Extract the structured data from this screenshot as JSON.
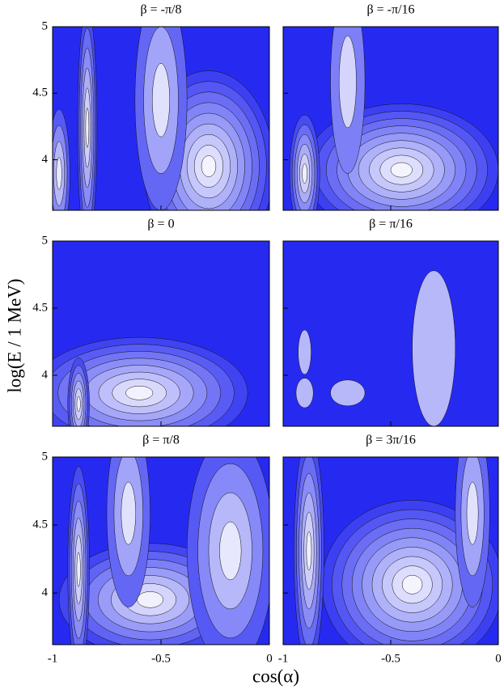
{
  "figure": {
    "xlabel": "cos(α)",
    "ylabel": "log(E / 1 MeV)"
  },
  "chart_data": [
    {
      "type": "contour",
      "title": "β = -π/8",
      "xlim": [
        -1,
        0
      ],
      "ylim": [
        3.62,
        5
      ],
      "xticks": [
        -1,
        -0.5,
        0
      ],
      "yticks": [
        4,
        4.5,
        5
      ]
    },
    {
      "type": "contour",
      "title": "β = -π/16",
      "xlim": [
        -1,
        0
      ],
      "ylim": [
        3.62,
        5
      ],
      "xticks": [
        -1,
        -0.5,
        0
      ],
      "yticks": [
        4,
        4.5,
        5
      ]
    },
    {
      "type": "contour",
      "title": "β = 0",
      "xlim": [
        -1,
        0
      ],
      "ylim": [
        3.62,
        5
      ],
      "xticks": [
        -1,
        -0.5,
        0
      ],
      "yticks": [
        4,
        4.5,
        5
      ]
    },
    {
      "type": "contour",
      "title": "β = π/16",
      "xlim": [
        -1,
        0
      ],
      "ylim": [
        3.62,
        5
      ],
      "xticks": [
        -1,
        -0.5,
        0
      ],
      "yticks": [
        4,
        4.5,
        5
      ]
    },
    {
      "type": "contour",
      "title": "β = π/8",
      "xlim": [
        -1,
        0
      ],
      "ylim": [
        3.62,
        5
      ],
      "xticks": [
        -1,
        -0.5,
        0
      ],
      "yticks": [
        4,
        4.5,
        5
      ]
    },
    {
      "type": "contour",
      "title": "β = 3π/16",
      "xlim": [
        -1,
        0
      ],
      "ylim": [
        3.62,
        5
      ],
      "xticks": [
        -1,
        -0.5,
        0
      ],
      "yticks": [
        4,
        4.5,
        5
      ]
    }
  ]
}
